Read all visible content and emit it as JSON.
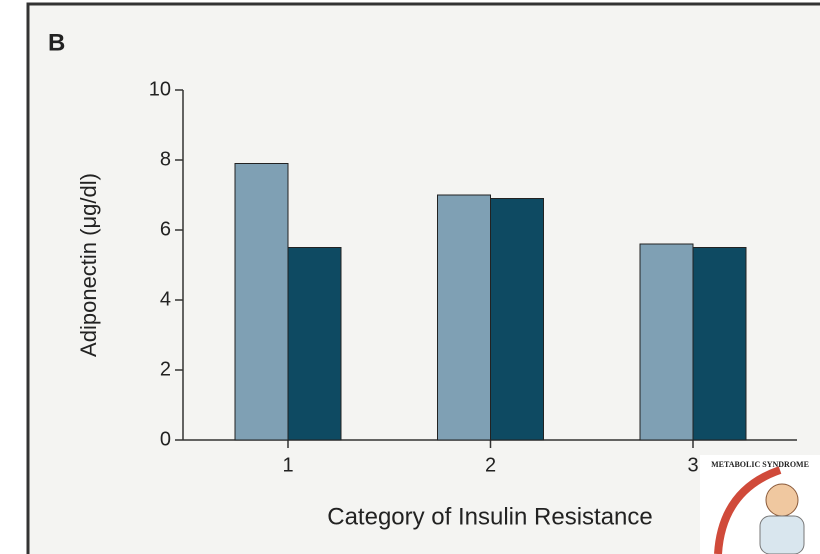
{
  "chart_data": {
    "type": "bar",
    "panel_label": "B",
    "y_label": "Adiponectin (μg/dl)",
    "x_label": "Category of Insulin Resistance",
    "categories": [
      "1",
      "2",
      "3"
    ],
    "series": [
      {
        "color": "#7fa0b4",
        "values": [
          7.9,
          7.0,
          5.6
        ]
      },
      {
        "color": "#0e4a62",
        "values": [
          5.5,
          6.9,
          5.5
        ]
      }
    ],
    "ylim": [
      0,
      10
    ],
    "yticks": [
      0,
      2,
      4,
      6,
      8,
      10
    ],
    "inset_label": "METABOLIC SYNDROME"
  }
}
